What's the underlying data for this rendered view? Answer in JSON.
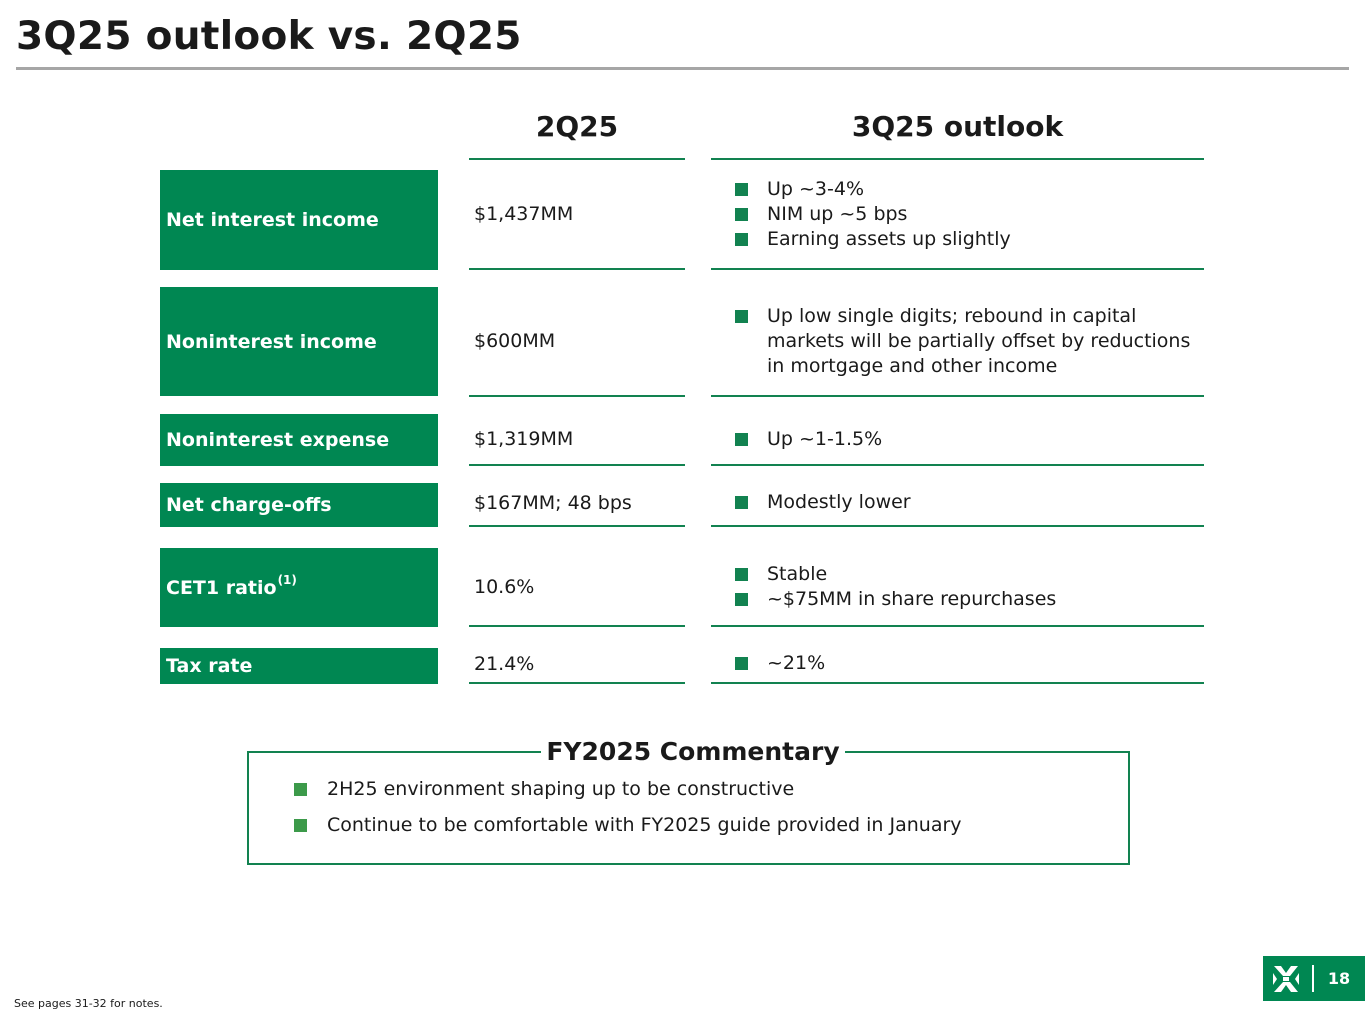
{
  "title": "3Q25 outlook vs. 2Q25",
  "columns": {
    "current": "2Q25",
    "outlook": "3Q25 outlook"
  },
  "rows": [
    {
      "label": "Net interest income",
      "value": "$1,437MM",
      "outlook": [
        "Up ~3-4%",
        "NIM up ~5 bps",
        "Earning assets up slightly"
      ]
    },
    {
      "label": "Noninterest income",
      "value": "$600MM",
      "outlook": [
        "Up low single digits; rebound in capital markets will be partially offset by reductions in mortgage and other income"
      ]
    },
    {
      "label": "Noninterest expense",
      "value": "$1,319MM",
      "outlook": [
        "Up ~1-1.5%"
      ]
    },
    {
      "label": "Net charge-offs",
      "value": "$167MM; 48 bps",
      "outlook": [
        "Modestly lower"
      ]
    },
    {
      "label": "CET1 ratio",
      "label_note": "(1)",
      "value": "10.6%",
      "outlook": [
        "Stable",
        "~$75MM in share repurchases"
      ]
    },
    {
      "label": "Tax rate",
      "value": "21.4%",
      "outlook": [
        "~21%"
      ]
    }
  ],
  "commentary": {
    "title": "FY2025 Commentary",
    "items": [
      "2H25 environment shaping up to be constructive",
      "Continue to be comfortable with FY2025 guide provided in January"
    ]
  },
  "footnote": "See pages 31-32 for notes.",
  "page_number": "18",
  "colors": {
    "brand_green": "#008752",
    "rule_green": "#128250",
    "title_rule": "#a6a6a6"
  },
  "icons": {
    "logo": "regions-logo-icon",
    "bullet": "square-bullet-icon"
  }
}
